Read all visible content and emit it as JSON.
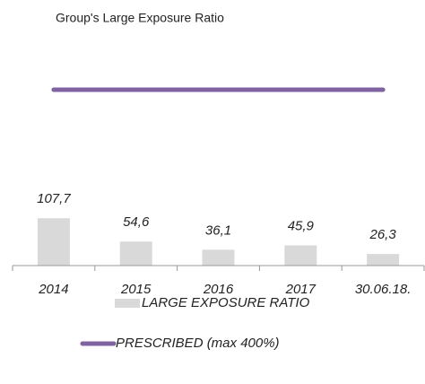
{
  "chart_data": {
    "type": "bar",
    "title": "Group's Large Exposure Ratio",
    "categories": [
      "2014",
      "2015",
      "2016",
      "2017",
      "30.06.18."
    ],
    "ylim": [
      0,
      400
    ],
    "series": [
      {
        "name": "LARGE EXPOSURE RATIO",
        "type": "bar",
        "color": "#d9d9d9",
        "values": [
          107.7,
          54.6,
          36.1,
          45.9,
          26.3
        ],
        "value_labels": [
          "107,7",
          "54,6",
          "36,1",
          "45,9",
          "26,3"
        ]
      },
      {
        "name": "PRESCRIBED (max 400%)",
        "type": "line",
        "color": "#8064a2",
        "values": [
          400,
          400,
          400,
          400,
          400
        ]
      }
    ]
  }
}
